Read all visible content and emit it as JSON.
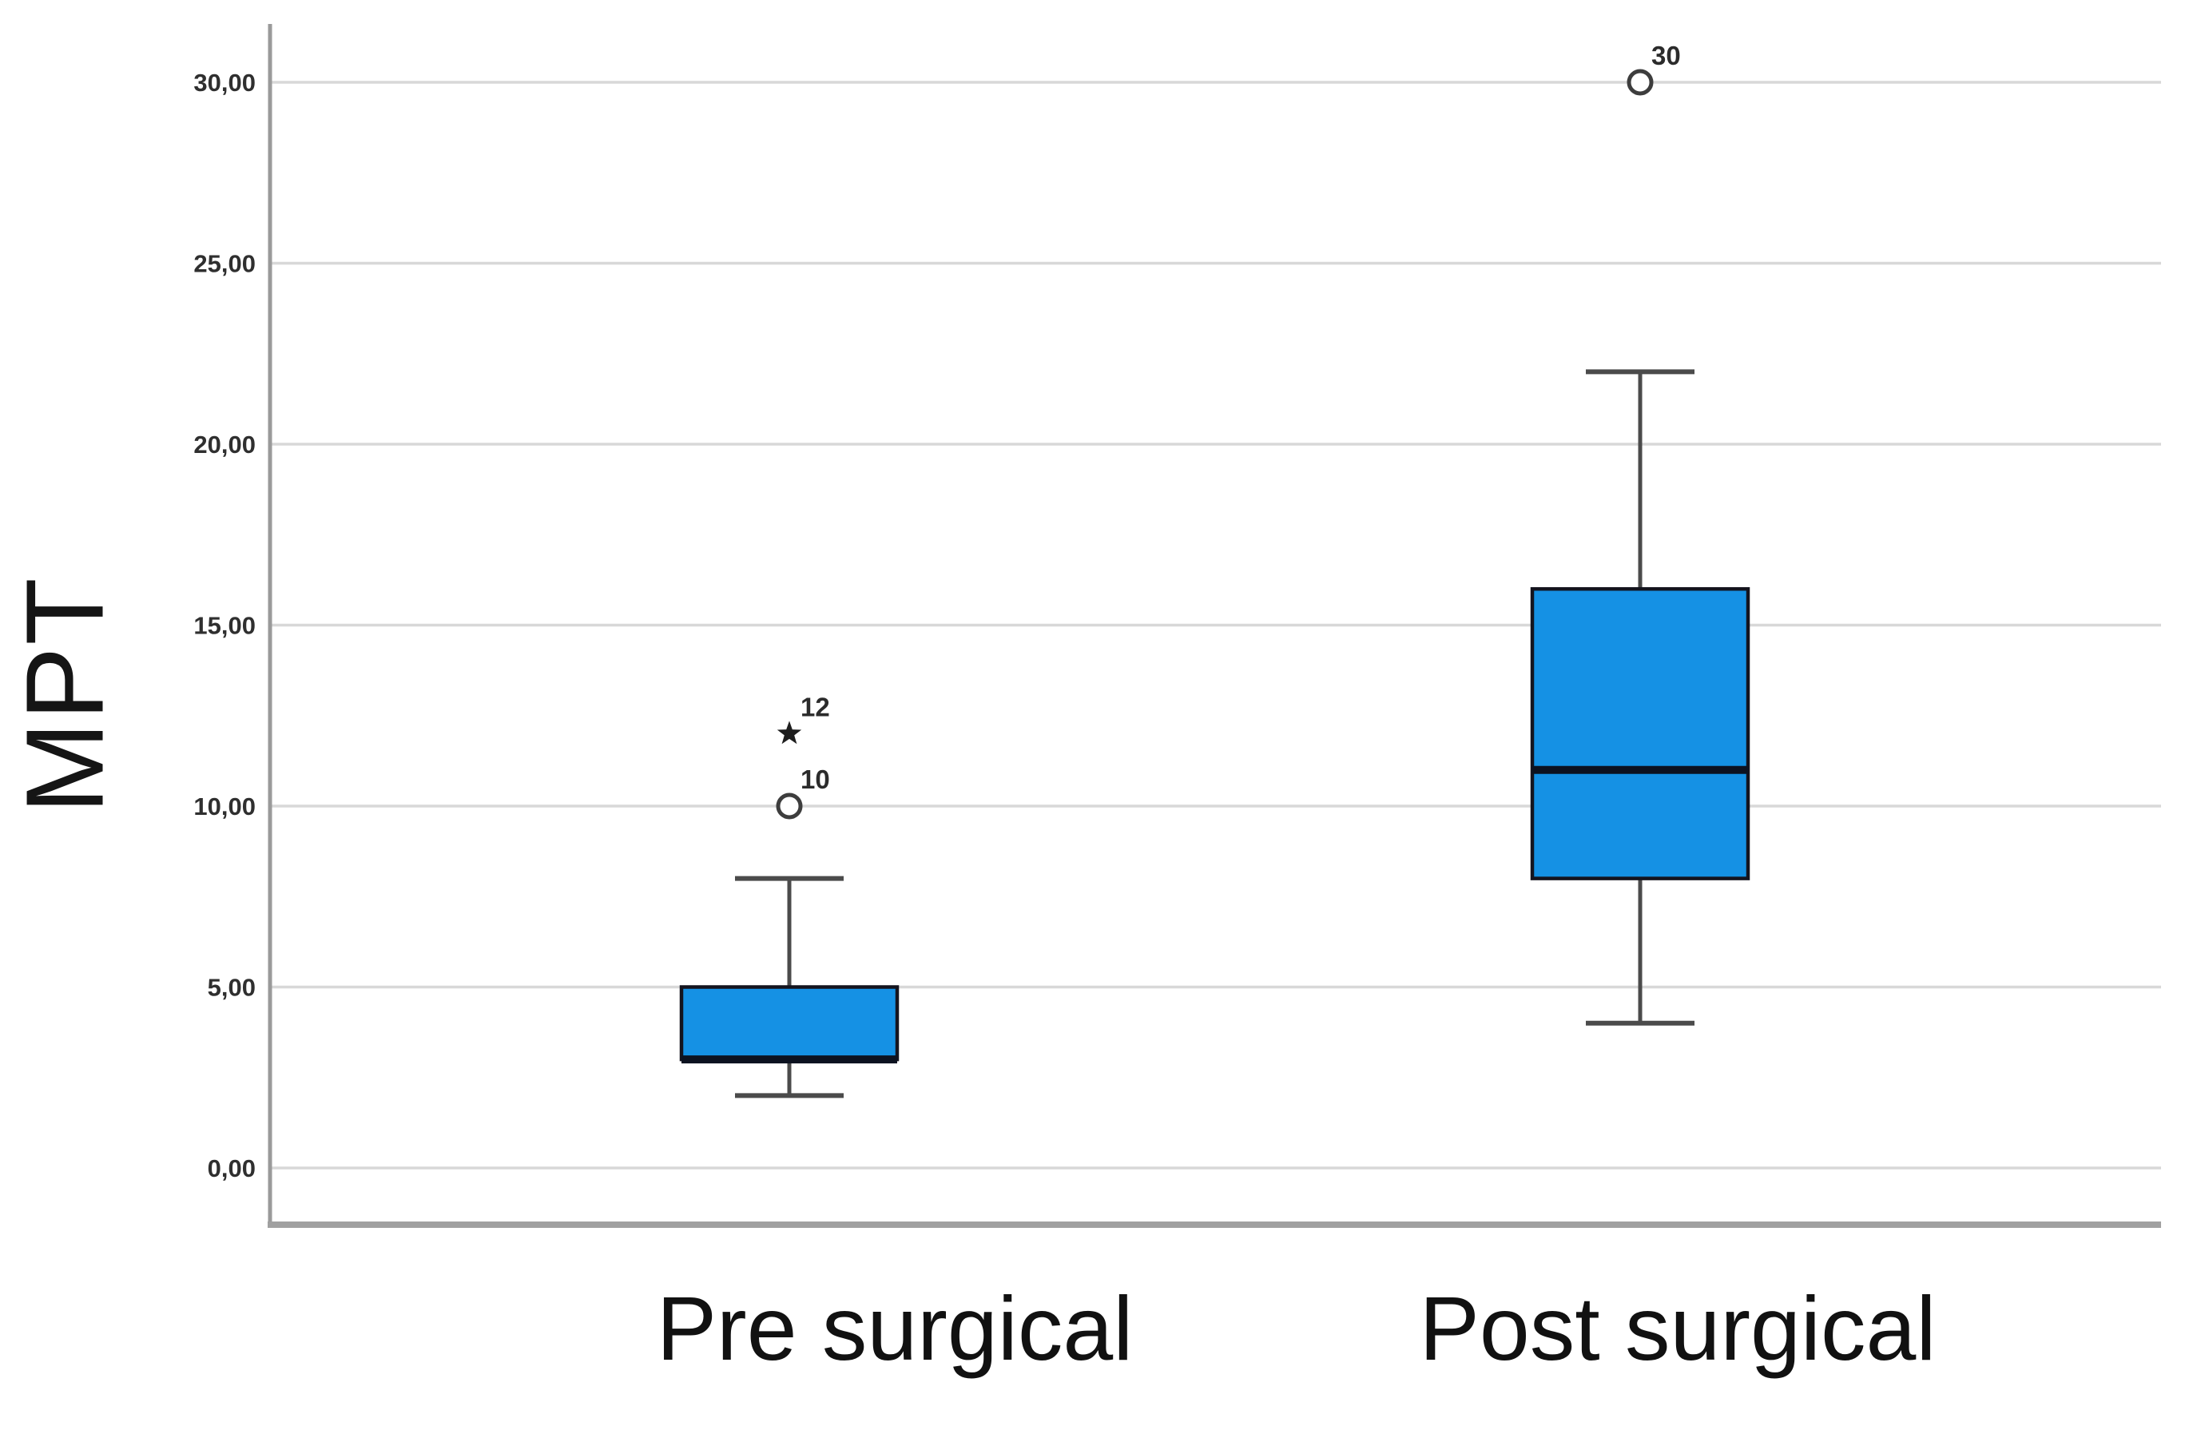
{
  "figure": {
    "background": "#ffffff"
  },
  "chart_data": {
    "type": "boxplot",
    "title": "",
    "ylabel": "MPT",
    "xlabel": "",
    "categories": [
      "Pre surgical",
      "Post surgical"
    ],
    "y_ticks": [
      {
        "value": 0,
        "label": "0,00"
      },
      {
        "value": 5,
        "label": "5,00"
      },
      {
        "value": 10,
        "label": "10,00"
      },
      {
        "value": 15,
        "label": "15,00"
      },
      {
        "value": 20,
        "label": "20,00"
      },
      {
        "value": 25,
        "label": "25,00"
      },
      {
        "value": 30,
        "label": "30,00"
      }
    ],
    "ylim": [
      -1.6,
      31.7
    ],
    "grid": true,
    "legend": "none",
    "series": [
      {
        "name": "Pre surgical",
        "whisker_low": 2,
        "q1": 3,
        "median": 3,
        "q3": 5,
        "whisker_high": 8,
        "outliers": [
          {
            "value": 10,
            "label": "10",
            "marker": "circle"
          },
          {
            "value": 12,
            "label": "12",
            "marker": "star"
          }
        ]
      },
      {
        "name": "Post surgical",
        "whisker_low": 4,
        "q1": 8,
        "median": 11,
        "q3": 16,
        "whisker_high": 22,
        "outliers": [
          {
            "value": 30,
            "label": "30",
            "marker": "circle"
          }
        ]
      }
    ],
    "colors": {
      "box_fill": "#1591E4",
      "box_border": "#14141E",
      "median": "#0C1220",
      "whisker": "#4B4B4B",
      "grid": "#D8D8D8",
      "axis_y": "#9A9A9A",
      "axis_x": "#A0A0A0",
      "tick_text": "#2F2F2F",
      "outlier_text": "#2B2B2B",
      "label_text": "#151515"
    }
  }
}
